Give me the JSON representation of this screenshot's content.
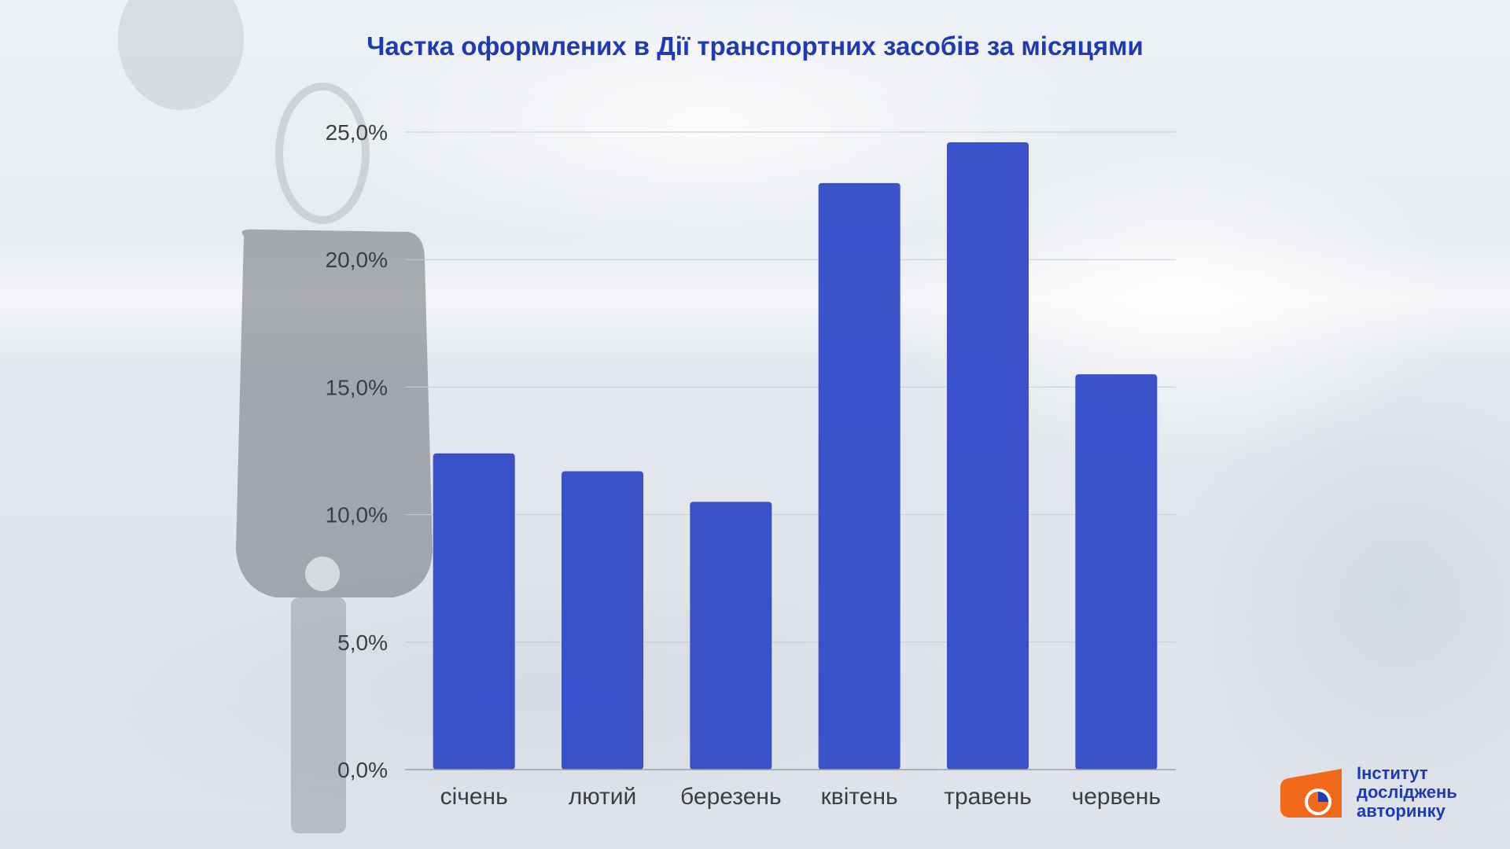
{
  "chart_data": {
    "type": "bar",
    "title": "Частка оформлених в Дії транспортних засобів за місяцями",
    "categories": [
      "січень",
      "лютий",
      "березень",
      "квітень",
      "травень",
      "червень"
    ],
    "values": [
      12.4,
      11.7,
      10.5,
      23.0,
      24.6,
      15.5
    ],
    "ylim": [
      0,
      25
    ],
    "yticks": [
      "0,0%",
      "5,0%",
      "10,0%",
      "15,0%",
      "20,0%",
      "25,0%"
    ],
    "ytick_values": [
      0,
      5,
      10,
      15,
      20,
      25
    ],
    "grid": true,
    "bar_color": "#2f49c7",
    "xlabel": "",
    "ylabel": ""
  },
  "logo": {
    "line1": "Інститут",
    "line2": "досліджень",
    "line3": "авторинку",
    "color_orange": "#f06a1a",
    "color_blue": "#1f3bb3"
  }
}
